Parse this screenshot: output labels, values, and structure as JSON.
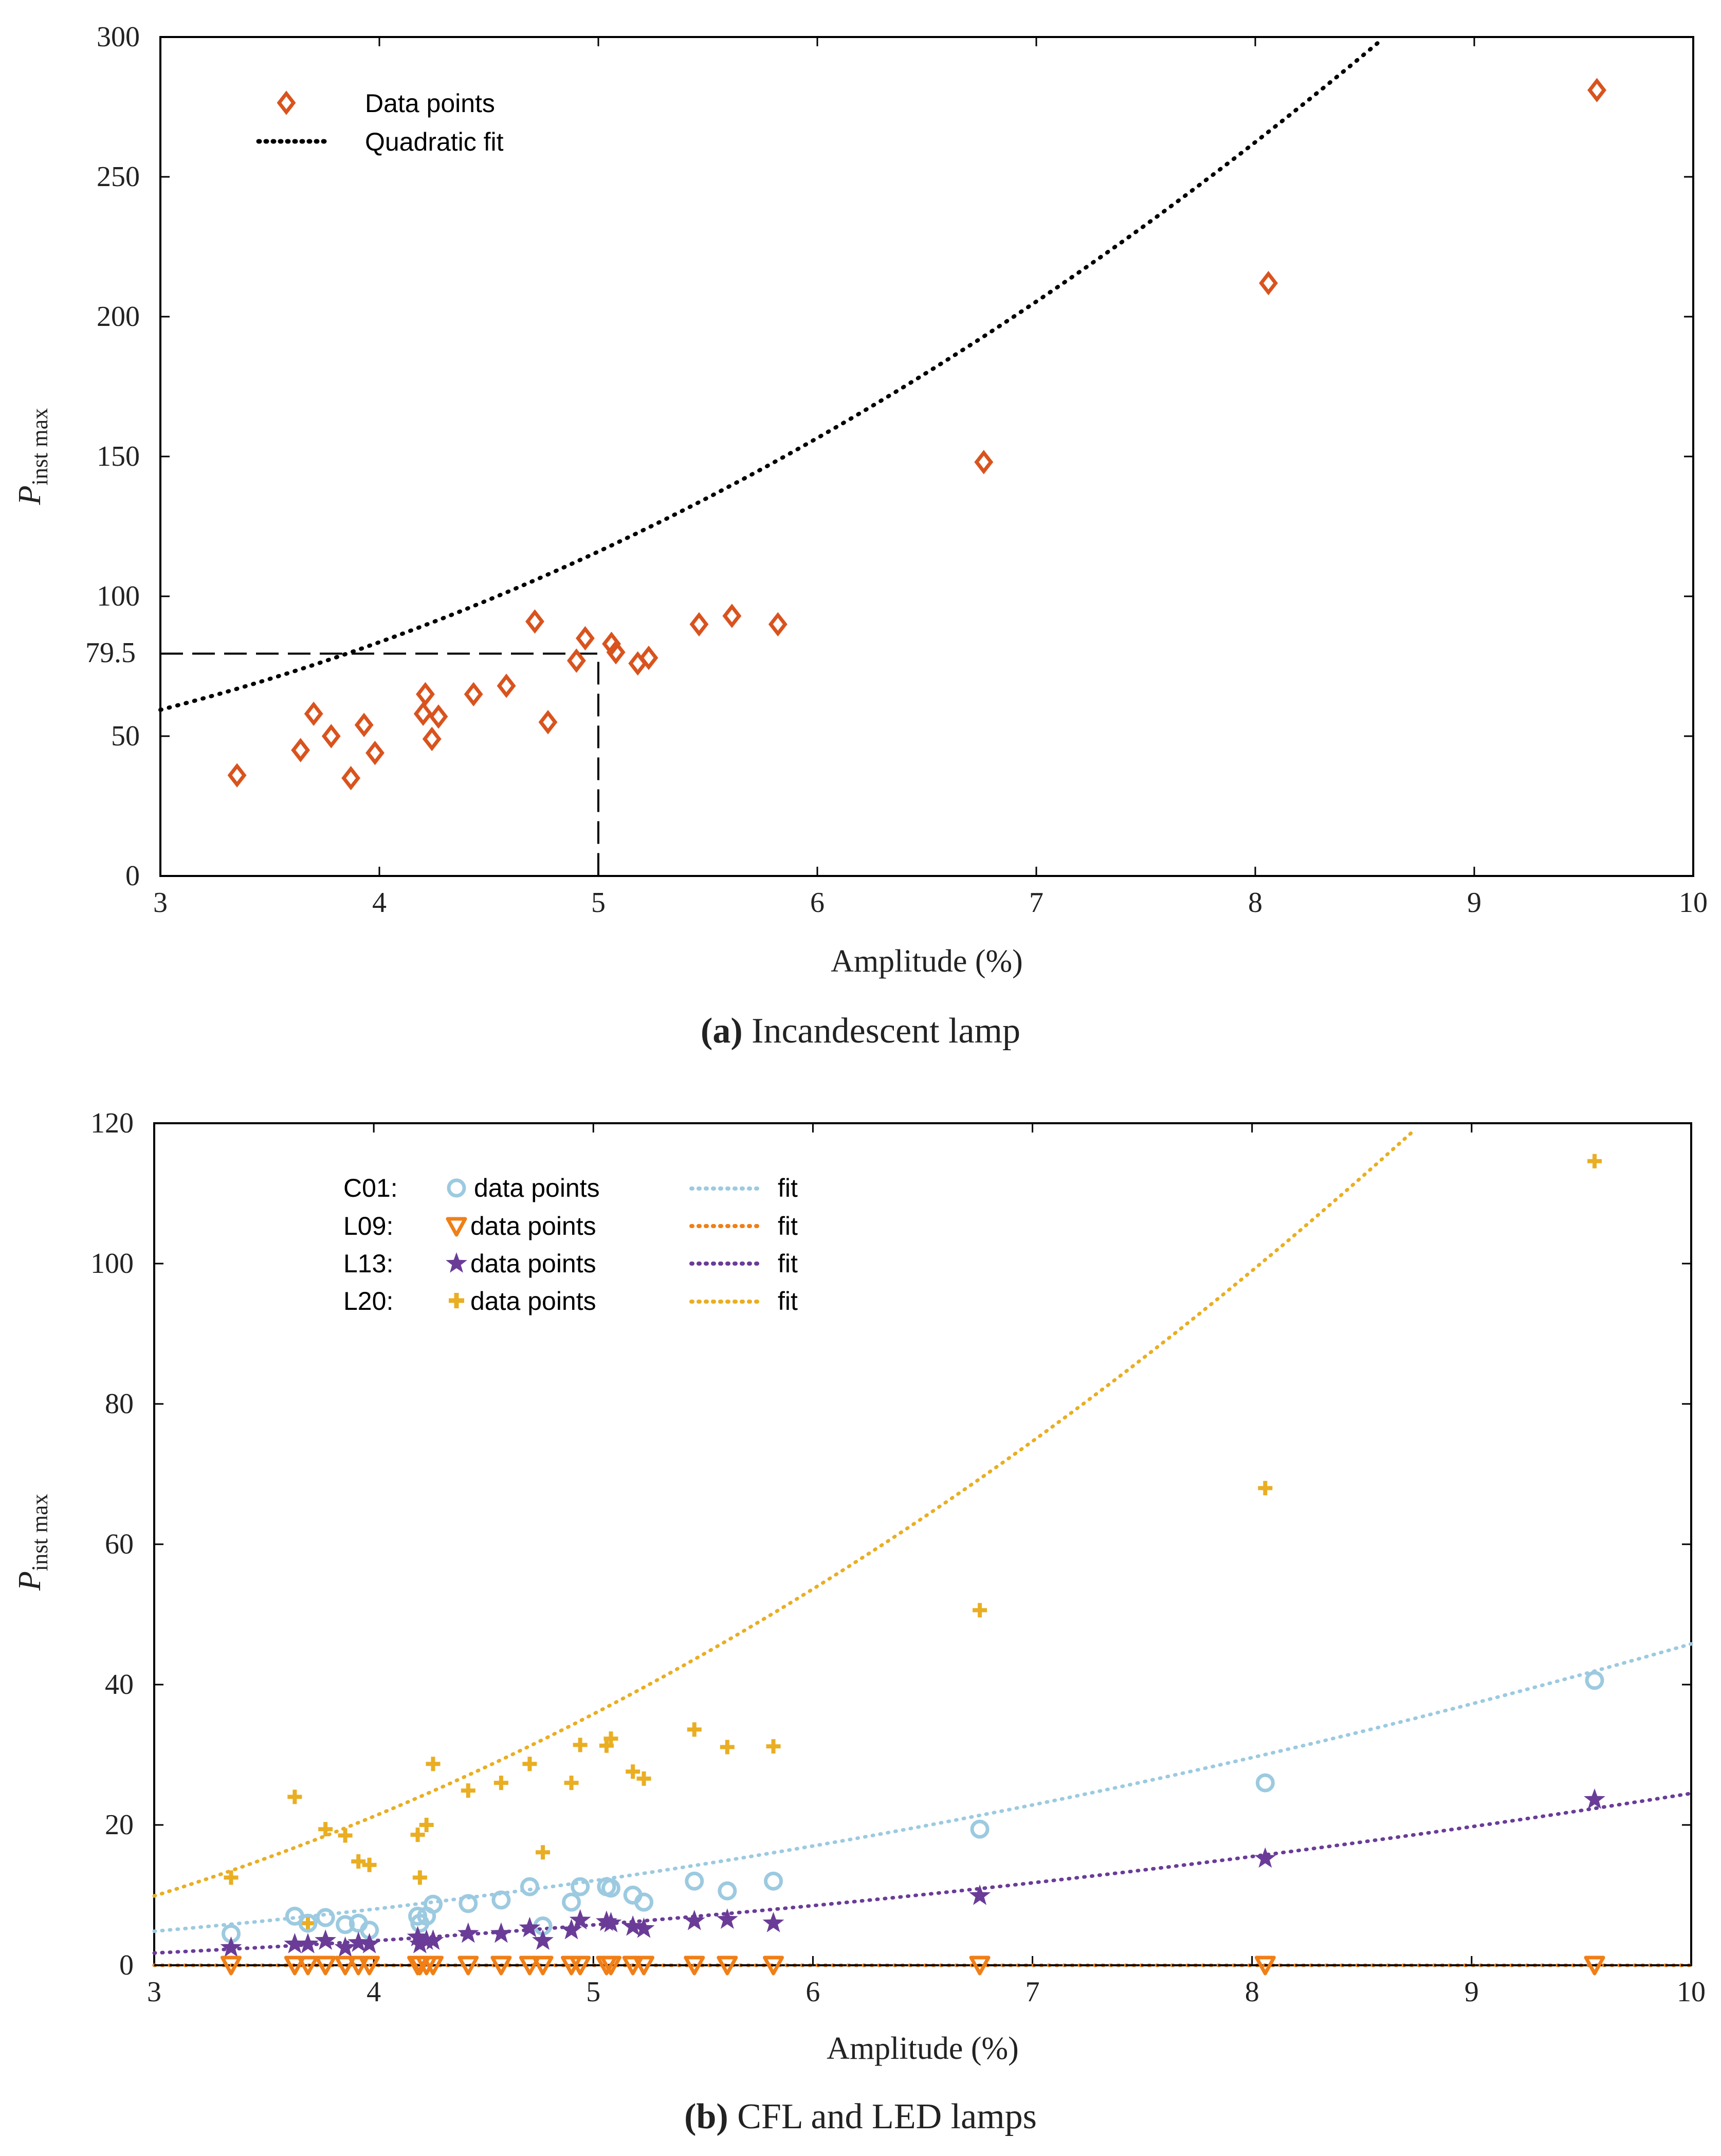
{
  "figure": {
    "panel_a_caption_bold": "(a)",
    "panel_a_caption_rest": " Incandescent lamp",
    "panel_b_caption_bold": "(b)",
    "panel_b_caption_rest": " CFL and LED lamps"
  },
  "chart_data": [
    {
      "type": "scatter",
      "title": "Incandescent lamp",
      "xlabel": "Amplitude (%)",
      "ylabel_main": "P",
      "ylabel_sub": "inst max",
      "xlim": [
        3,
        10
      ],
      "ylim": [
        0,
        300
      ],
      "xticks": [
        "3",
        "4",
        "5",
        "6",
        "7",
        "8",
        "9",
        "10"
      ],
      "yticks": [
        "0",
        "50",
        "100",
        "150",
        "200",
        "250",
        "300"
      ],
      "annotation": {
        "label": "79.5",
        "x": 5.0,
        "y": 79.5
      },
      "series": [
        {
          "name": "Data points",
          "marker": "diamond",
          "color": "#d9531e",
          "points": [
            [
              3.35,
              36
            ],
            [
              3.64,
              45
            ],
            [
              3.7,
              58
            ],
            [
              3.78,
              50
            ],
            [
              3.87,
              35
            ],
            [
              3.93,
              54
            ],
            [
              3.98,
              44
            ],
            [
              4.2,
              58
            ],
            [
              4.21,
              65
            ],
            [
              4.24,
              49
            ],
            [
              4.27,
              57
            ],
            [
              4.43,
              65
            ],
            [
              4.58,
              68
            ],
            [
              4.71,
              91
            ],
            [
              4.77,
              55
            ],
            [
              4.9,
              77
            ],
            [
              4.94,
              85
            ],
            [
              5.06,
              83
            ],
            [
              5.08,
              80
            ],
            [
              5.18,
              76
            ],
            [
              5.23,
              78
            ],
            [
              5.46,
              90
            ],
            [
              5.61,
              93
            ],
            [
              5.82,
              90
            ],
            [
              6.76,
              148
            ],
            [
              8.06,
              212
            ],
            [
              9.56,
              281
            ]
          ]
        },
        {
          "name": "Quadratic fit",
          "line": "dotted",
          "color": "#000000",
          "coef": [
            4.1,
            -4.5,
            36.0
          ]
        }
      ]
    },
    {
      "type": "scatter",
      "title": "CFL and LED lamps",
      "xlabel": "Amplitude (%)",
      "ylabel_main": "P",
      "ylabel_sub": "inst max",
      "xlim": [
        3,
        10
      ],
      "ylim": [
        0,
        120
      ],
      "xticks": [
        "3",
        "4",
        "5",
        "6",
        "7",
        "8",
        "9",
        "10"
      ],
      "yticks": [
        "0",
        "20",
        "40",
        "60",
        "80",
        "100",
        "120"
      ],
      "x": [
        3.35,
        3.64,
        3.7,
        3.78,
        3.87,
        3.93,
        3.98,
        4.2,
        4.21,
        4.24,
        4.27,
        4.43,
        4.58,
        4.71,
        4.77,
        4.9,
        4.94,
        5.06,
        5.08,
        5.18,
        5.23,
        5.46,
        5.61,
        5.82,
        6.76,
        8.06,
        9.56
      ],
      "series": [
        {
          "name": "C01",
          "legend_data": "data points",
          "legend_fit": "fit",
          "marker": "circle",
          "color": "#9ccae0",
          "y": [
            4.5,
            7.0,
            6.0,
            6.8,
            5.8,
            6.0,
            5.0,
            7.0,
            6.0,
            7.0,
            8.7,
            8.8,
            9.3,
            11.2,
            5.6,
            9.0,
            11.2,
            11.2,
            11.0,
            10.0,
            9.0,
            12.0,
            10.6,
            12.0,
            19.4,
            26.0,
            40.6
          ],
          "fit_coef": [
            0.45,
            0.0,
            0.8
          ]
        },
        {
          "name": "L09",
          "legend_data": "data points",
          "legend_fit": "fit",
          "marker": "triangle-down",
          "color": "#f07f17",
          "y": [
            0,
            0,
            0,
            0,
            0,
            0,
            0,
            0,
            0,
            0,
            0,
            0,
            0,
            0,
            0,
            0,
            0,
            0,
            0,
            0,
            0,
            0,
            0,
            0,
            0,
            0,
            0
          ],
          "fit_coef": [
            0.0,
            0.0,
            0.0
          ]
        },
        {
          "name": "L13",
          "legend_data": "data points",
          "legend_fit": "fit",
          "marker": "star",
          "color": "#6a3c97",
          "y": [
            2.5,
            3.0,
            3.0,
            3.5,
            2.5,
            3.2,
            3.0,
            4.0,
            3.0,
            3.5,
            3.5,
            4.5,
            4.5,
            5.3,
            3.5,
            5.0,
            6.4,
            6.2,
            6.0,
            5.5,
            5.2,
            6.3,
            6.5,
            6.0,
            9.9,
            15.2,
            23.6
          ],
          "fit_coef": [
            0.25,
            0.0,
            -0.5
          ]
        },
        {
          "name": "L20",
          "legend_data": "data points",
          "legend_fit": "fit",
          "marker": "plus",
          "color": "#e9ae22",
          "y": [
            12.5,
            24.0,
            6.0,
            19.4,
            18.5,
            14.8,
            14.3,
            18.6,
            12.5,
            20.0,
            28.7,
            24.9,
            26.0,
            28.7,
            16.1,
            26.0,
            31.4,
            31.3,
            32.3,
            27.6,
            26.6,
            33.6,
            31.1,
            31.2,
            50.6,
            68.0,
            114.6
          ],
          "fit_coef": [
            1.62,
            0.0,
            -4.7
          ]
        }
      ]
    }
  ]
}
